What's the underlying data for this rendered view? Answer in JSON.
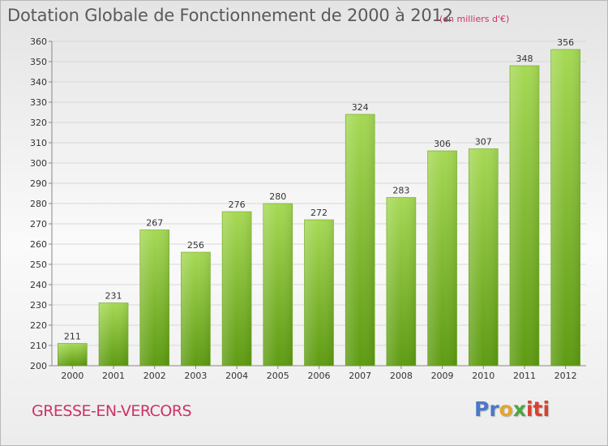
{
  "header": {
    "title": "Dotation Globale de Fonctionnement de 2000 à 2012",
    "subtitle": "(en milliers d'€)"
  },
  "footer": {
    "town": "GRESSE-EN-VERCORS",
    "logo": [
      "Pr",
      "o",
      "x",
      "iti"
    ]
  },
  "colors": {
    "bar_light": "#a6d955",
    "bar_dark": "#5e9b12",
    "grid": "#d8d8d8",
    "accent": "#cc3366"
  },
  "chart_data": {
    "type": "bar",
    "title": "Dotation Globale de Fonctionnement de 2000 à 2012",
    "subtitle": "(en milliers d'€)",
    "xlabel": "",
    "ylabel": "",
    "categories": [
      "2000",
      "2001",
      "2002",
      "2003",
      "2004",
      "2005",
      "2006",
      "2007",
      "2008",
      "2009",
      "2010",
      "2011",
      "2012"
    ],
    "values": [
      211,
      231,
      267,
      256,
      276,
      280,
      272,
      324,
      283,
      306,
      307,
      348,
      356
    ],
    "ylim": [
      200,
      360
    ],
    "yticks": [
      200,
      210,
      220,
      230,
      240,
      250,
      260,
      270,
      280,
      290,
      300,
      310,
      320,
      330,
      340,
      350,
      360
    ],
    "grid": true,
    "legend": "none"
  }
}
